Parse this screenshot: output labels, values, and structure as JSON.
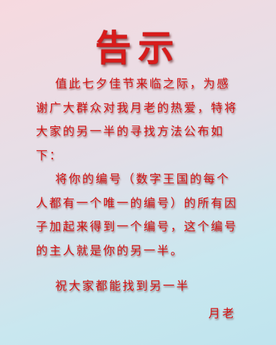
{
  "title": "告示",
  "paragraphs": [
    "值此七夕佳节来临之际，为感谢广大群众对我月老的热爱，特将大家的另一半的寻找方法公布如下：",
    "将你的编号（数字王国的每个人都有一个唯一的编号）的所有因子加起来得到一个编号，这个编号的主人就是你的另一半。",
    "祝大家都能找到另一半"
  ],
  "signature": "月老",
  "colors": {
    "text": "#d31414",
    "background_top": "#f7d9df",
    "background_bottom": "#bfe4ee"
  }
}
